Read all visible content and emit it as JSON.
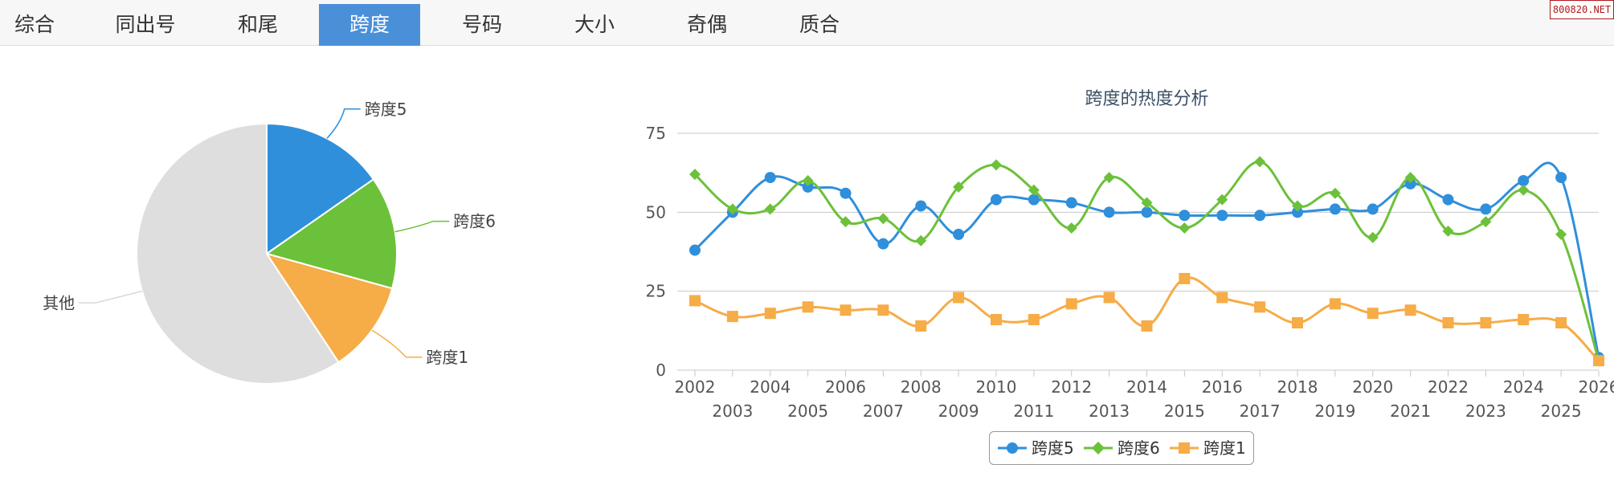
{
  "tabs": [
    {
      "label": "综合",
      "active": false
    },
    {
      "label": "同出号",
      "active": false
    },
    {
      "label": "和尾",
      "active": false
    },
    {
      "label": "跨度",
      "active": true
    },
    {
      "label": "号码",
      "active": false
    },
    {
      "label": "大小",
      "active": false
    },
    {
      "label": "奇偶",
      "active": false
    },
    {
      "label": "质合",
      "active": false
    }
  ],
  "site_badge": "800820.NET",
  "colors": {
    "accent": "#4a90d9",
    "series_blue": "#2f8fdb",
    "series_green": "#6cc13a",
    "series_orange": "#f6ac47",
    "pie_other": "#dedede"
  },
  "chart_data": [
    {
      "type": "pie",
      "slices": [
        {
          "label": "跨度5",
          "value": 15.3,
          "color": "#2f8fdb"
        },
        {
          "label": "跨度6",
          "value": 14.0,
          "color": "#6cc13a"
        },
        {
          "label": "跨度1",
          "value": 11.4,
          "color": "#f6ac47"
        },
        {
          "label": "其他",
          "value": 59.3,
          "color": "#dedede"
        }
      ]
    },
    {
      "type": "line",
      "title": "跨度的热度分析",
      "x": [
        "2002",
        "2003",
        "2004",
        "2005",
        "2006",
        "2007",
        "2008",
        "2009",
        "2010",
        "2011",
        "2012",
        "2013",
        "2014",
        "2015",
        "2016",
        "2017",
        "2018",
        "2019",
        "2020",
        "2021",
        "2022",
        "2023",
        "2024",
        "2025",
        "2026"
      ],
      "ylim": [
        0,
        75
      ],
      "yticks": [
        0,
        25,
        50,
        75
      ],
      "grid": true,
      "legend": "bottom-center",
      "series": [
        {
          "name": "跨度5",
          "marker": "circle",
          "color": "#2f8fdb",
          "values": [
            38,
            50,
            61,
            58,
            56,
            40,
            52,
            43,
            54,
            54,
            53,
            50,
            50,
            49,
            49,
            49,
            50,
            51,
            51,
            59,
            54,
            51,
            60,
            61,
            4
          ]
        },
        {
          "name": "跨度6",
          "marker": "diamond",
          "color": "#6cc13a",
          "values": [
            62,
            51,
            51,
            60,
            47,
            48,
            41,
            58,
            65,
            57,
            45,
            61,
            53,
            45,
            54,
            66,
            52,
            56,
            42,
            61,
            44,
            47,
            57,
            43,
            3
          ]
        },
        {
          "name": "跨度1",
          "marker": "square",
          "color": "#f6ac47",
          "values": [
            22,
            17,
            18,
            20,
            19,
            19,
            14,
            23,
            16,
            16,
            21,
            23,
            14,
            29,
            23,
            20,
            15,
            21,
            18,
            19,
            15,
            15,
            16,
            15,
            3
          ]
        }
      ]
    }
  ]
}
